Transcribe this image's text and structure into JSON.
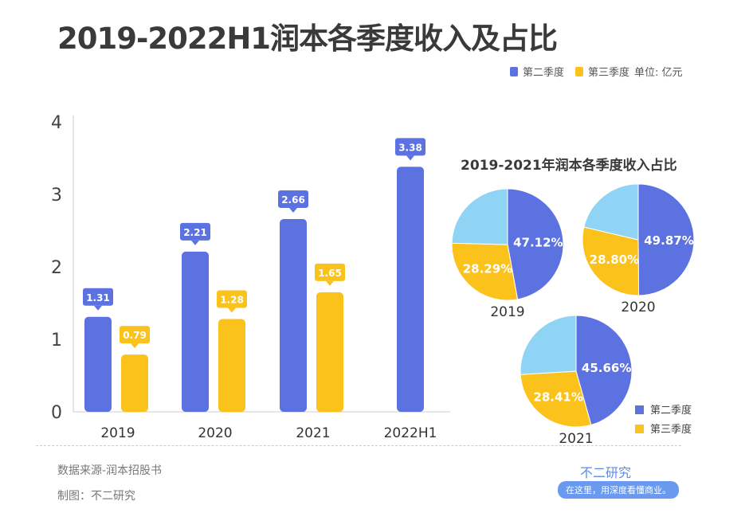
{
  "title": "2019-2022H1润本各季度收入及占比",
  "legend": {
    "q2": "第二季度",
    "q3": "第三季度",
    "unit": "单位: 亿元"
  },
  "footer": {
    "source": "数据来源-润本招股书",
    "maker": "制图：不二研究",
    "brand": "不二研究",
    "slogan": "在这里，用深度看懂商业。"
  },
  "colors": {
    "q2": "#5b72e0",
    "q3": "#fcc21c",
    "other": "#8fd3f5"
  },
  "chart_data": [
    {
      "type": "bar",
      "title": "2019-2022H1润本各季度收入及占比",
      "categories": [
        "2019",
        "2020",
        "2021",
        "2022H1"
      ],
      "series": [
        {
          "name": "第二季度",
          "values": [
            1.31,
            2.21,
            2.66,
            3.38
          ]
        },
        {
          "name": "第三季度",
          "values": [
            0.79,
            1.28,
            1.65,
            null
          ]
        }
      ],
      "yticks": [
        0,
        1,
        2,
        3,
        4
      ],
      "ylim": [
        0,
        4
      ],
      "legend": "top-right",
      "grid": false,
      "unit": "亿元"
    },
    {
      "type": "pie",
      "title": "2019-2021年润本各季度收入占比",
      "legend": "bottom-right",
      "legend_entries": [
        "第二季度",
        "第三季度"
      ],
      "pies": [
        {
          "label": "2019",
          "slices": [
            {
              "name": "第二季度",
              "value": 47.12,
              "label": "47.12%"
            },
            {
              "name": "第三季度",
              "value": 28.29,
              "label": "28.29%"
            },
            {
              "name": "other",
              "value": 24.59
            }
          ]
        },
        {
          "label": "2020",
          "slices": [
            {
              "name": "第二季度",
              "value": 49.87,
              "label": "49.87%"
            },
            {
              "name": "第三季度",
              "value": 28.8,
              "label": "28.80%"
            },
            {
              "name": "other",
              "value": 21.33
            }
          ]
        },
        {
          "label": "2021",
          "slices": [
            {
              "name": "第二季度",
              "value": 45.66,
              "label": "45.66%"
            },
            {
              "name": "第三季度",
              "value": 28.41,
              "label": "28.41%"
            },
            {
              "name": "other",
              "value": 25.93
            }
          ]
        }
      ]
    }
  ]
}
